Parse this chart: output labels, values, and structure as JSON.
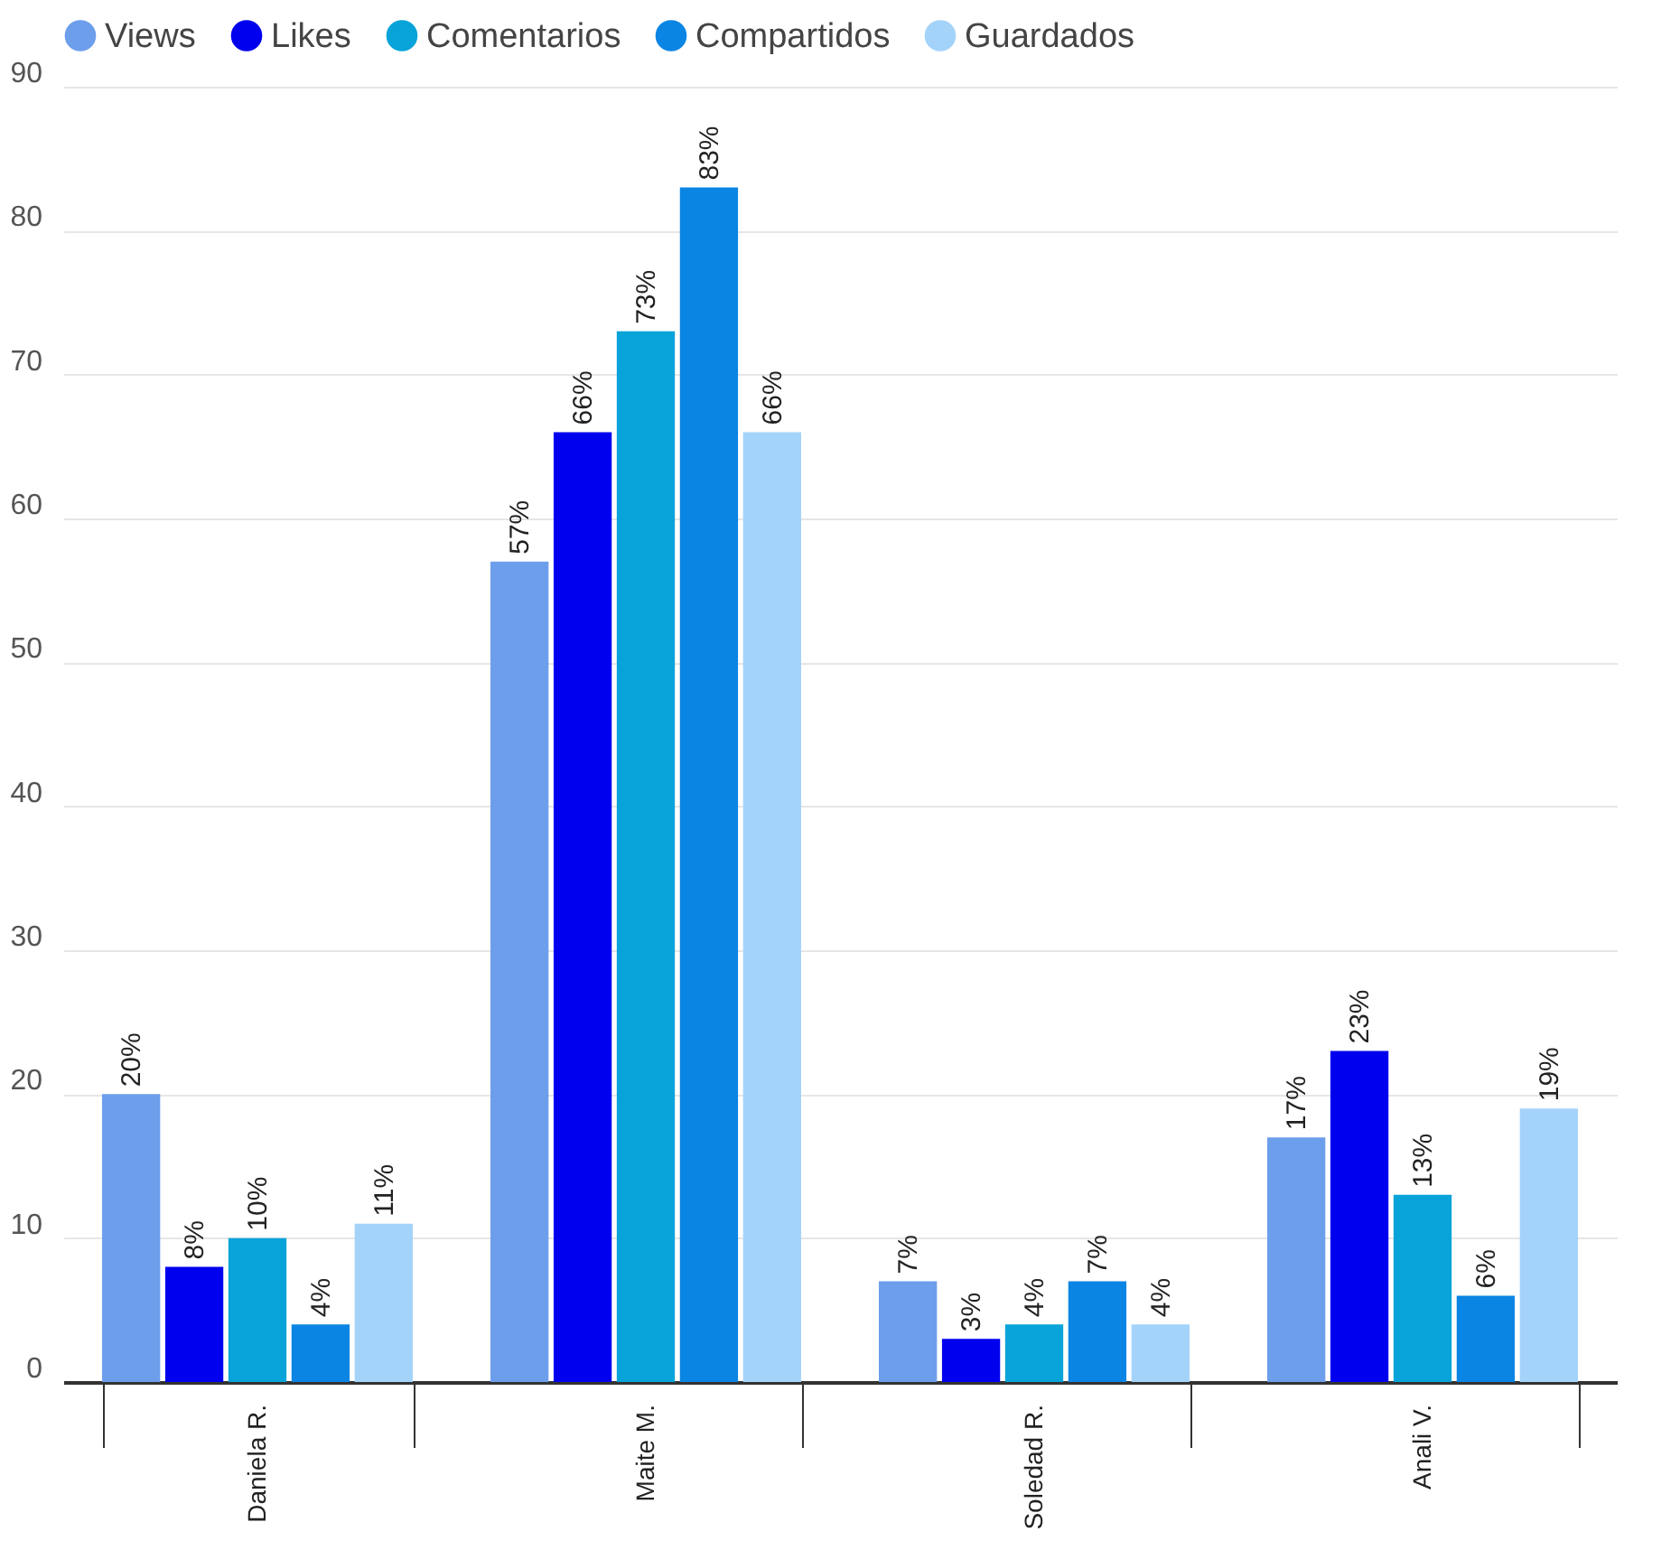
{
  "chart_data": {
    "type": "bar",
    "categories": [
      "Daniela R.",
      "Maite M.",
      "Soledad R.",
      "Anali V."
    ],
    "series": [
      {
        "name": "Views",
        "color": "#6d9eeb",
        "values": [
          20,
          57,
          7,
          17
        ],
        "value_labels": [
          "20%",
          "57%",
          "7%",
          "17%"
        ]
      },
      {
        "name": "Likes",
        "color": "#0000ee",
        "values": [
          8,
          66,
          3,
          23
        ],
        "value_labels": [
          "8%",
          "66%",
          "3%",
          "23%"
        ]
      },
      {
        "name": "Comentarios",
        "color": "#07a3d9",
        "values": [
          10,
          73,
          4,
          13
        ],
        "value_labels": [
          "10%",
          "73%",
          "4%",
          "13%"
        ]
      },
      {
        "name": "Compartidos",
        "color": "#0b85e3",
        "values": [
          4,
          83,
          7,
          6
        ],
        "value_labels": [
          "4%",
          "83%",
          "7%",
          "6%"
        ]
      },
      {
        "name": "Guardados",
        "color": "#a4d3fa",
        "values": [
          11,
          66,
          4,
          19
        ],
        "value_labels": [
          "11%",
          "66%",
          "4%",
          "19%"
        ]
      }
    ],
    "ylim": [
      0,
      90
    ],
    "yticks": [
      0,
      10,
      20,
      30,
      40,
      50,
      60,
      70,
      80,
      90
    ],
    "grid": "y",
    "legend": "top"
  }
}
